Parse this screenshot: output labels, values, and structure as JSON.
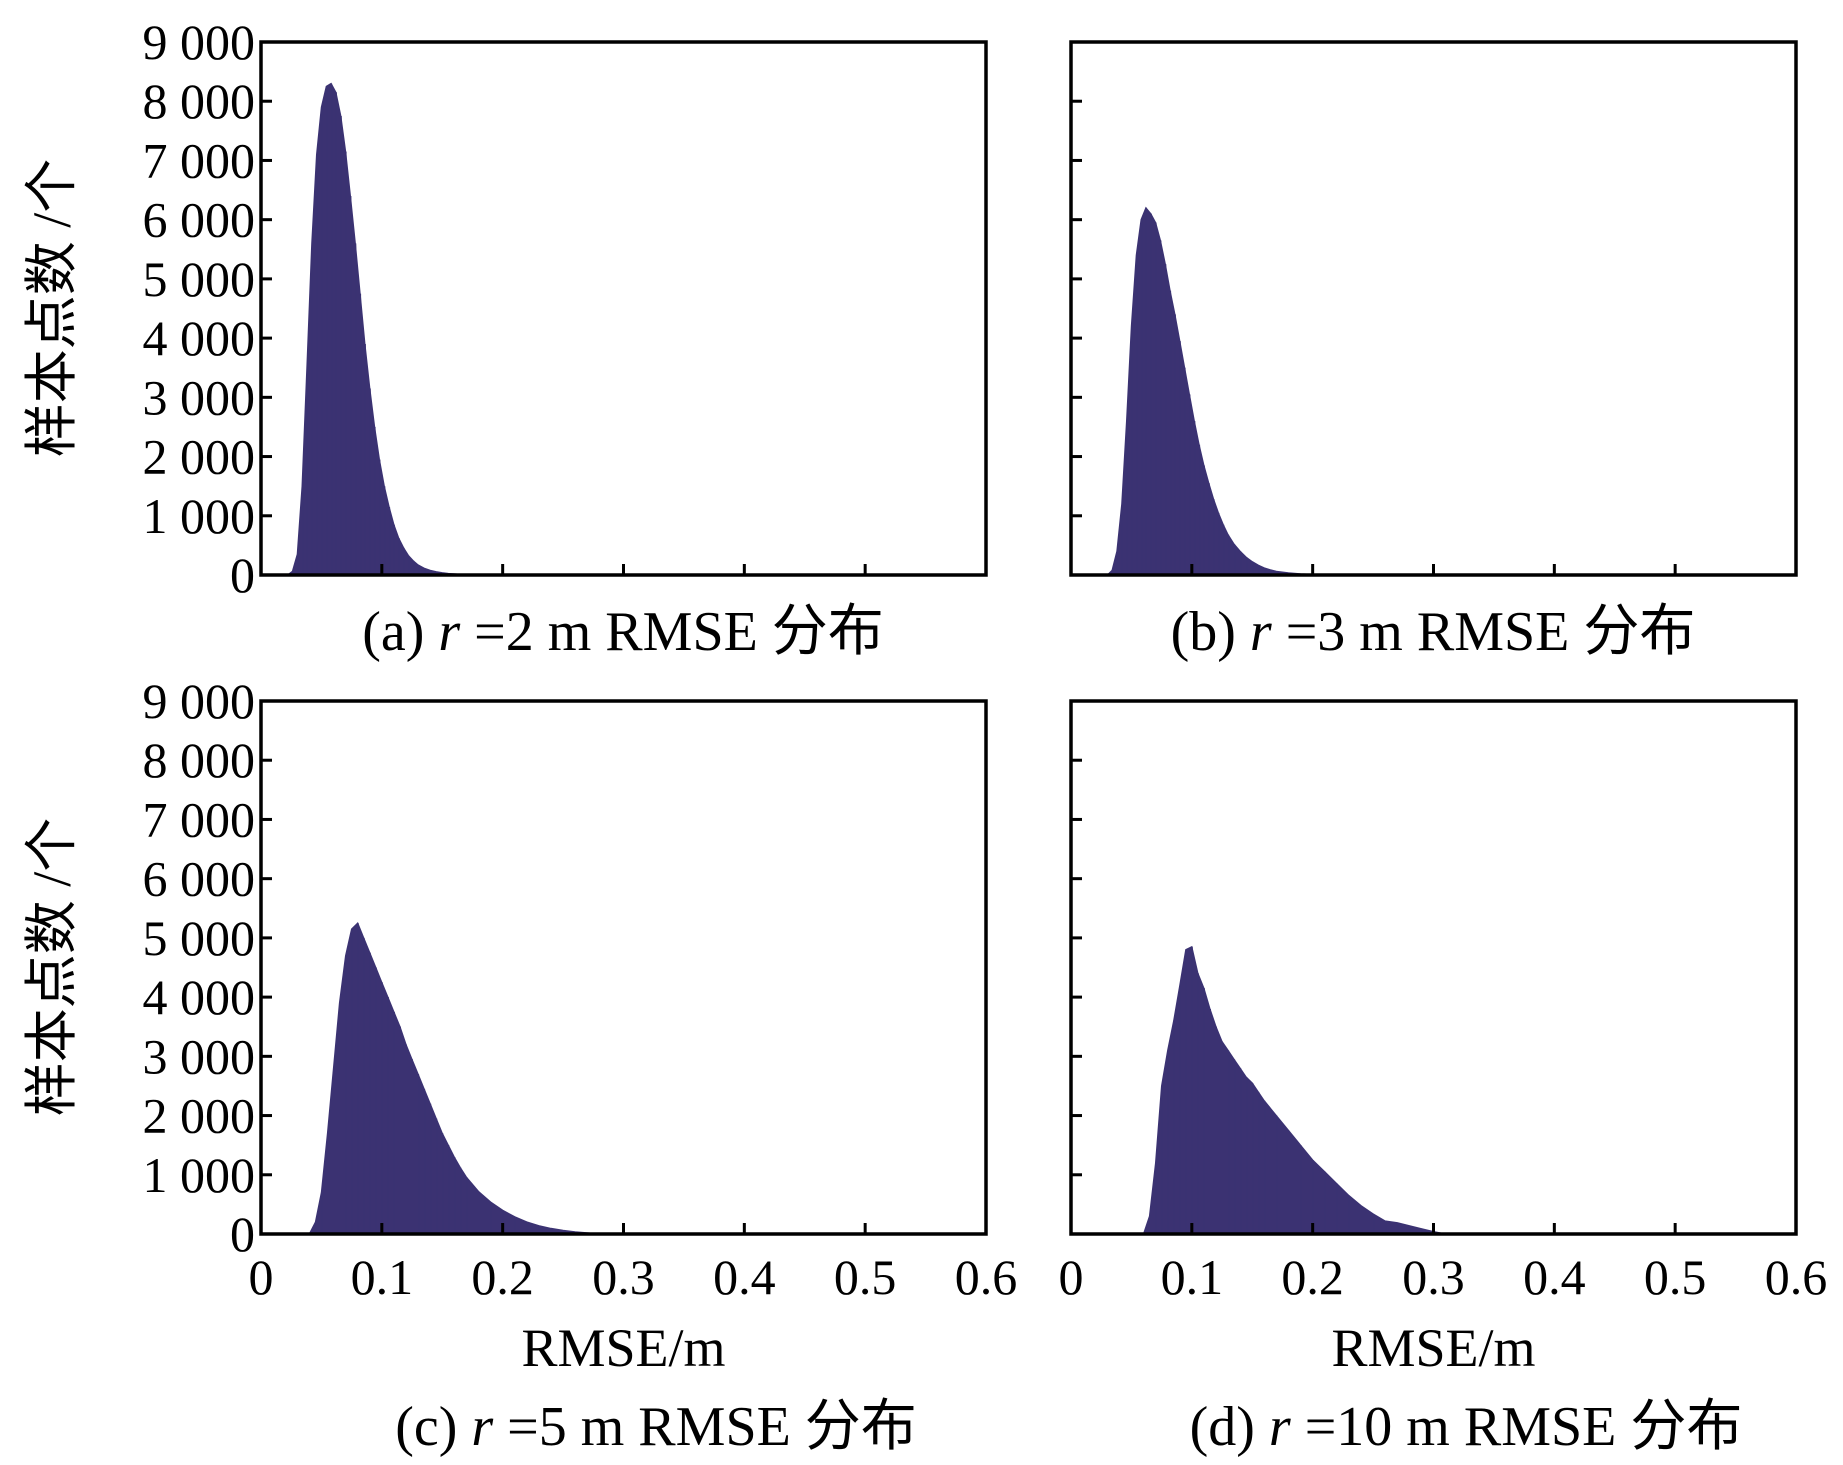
{
  "chart_data": [
    {
      "type": "bar",
      "panel": "a",
      "caption": {
        "prefix": "(a) ",
        "var": "r",
        "suffix": " =2 m RMSE 分布"
      },
      "ylabel": "样本点数 /个",
      "xlabel": "",
      "xlim": [
        0,
        0.6
      ],
      "ylim": [
        0,
        9000
      ],
      "yticks": [
        "0",
        "1 000",
        "2 000",
        "3 000",
        "4 000",
        "5 000",
        "6 000",
        "7 000",
        "8 000",
        "9 000"
      ],
      "xticks": [],
      "color": "#3b3272",
      "grid": false,
      "x": [
        0.022,
        0.026,
        0.03,
        0.034,
        0.038,
        0.042,
        0.046,
        0.05,
        0.054,
        0.058,
        0.062,
        0.066,
        0.07,
        0.074,
        0.078,
        0.082,
        0.086,
        0.09,
        0.094,
        0.098,
        0.102,
        0.106,
        0.11,
        0.114,
        0.118,
        0.122,
        0.126,
        0.13,
        0.135,
        0.14,
        0.145,
        0.15,
        0.155,
        0.16,
        0.165,
        0.17,
        0.175,
        0.18,
        0.19,
        0.2
      ],
      "values": [
        0,
        60,
        350,
        1500,
        3500,
        5600,
        7100,
        7900,
        8250,
        8300,
        8150,
        7750,
        7150,
        6400,
        5600,
        4750,
        3900,
        3150,
        2500,
        1950,
        1500,
        1150,
        850,
        620,
        460,
        330,
        240,
        170,
        115,
        80,
        55,
        38,
        26,
        18,
        12,
        8,
        6,
        4,
        2,
        0
      ]
    },
    {
      "type": "bar",
      "panel": "b",
      "caption": {
        "prefix": "(b) ",
        "var": "r",
        "suffix": " =3 m RMSE 分布"
      },
      "ylabel": "",
      "xlabel": "",
      "xlim": [
        0,
        0.6
      ],
      "ylim": [
        0,
        9000
      ],
      "yticks": [],
      "xticks": [],
      "color": "#3b3272",
      "grid": false,
      "x": [
        0.03,
        0.034,
        0.038,
        0.042,
        0.046,
        0.05,
        0.054,
        0.058,
        0.062,
        0.066,
        0.07,
        0.074,
        0.078,
        0.082,
        0.086,
        0.09,
        0.094,
        0.098,
        0.102,
        0.106,
        0.11,
        0.114,
        0.118,
        0.122,
        0.126,
        0.13,
        0.135,
        0.14,
        0.145,
        0.15,
        0.155,
        0.16,
        0.165,
        0.17,
        0.18,
        0.19,
        0.2,
        0.21,
        0.22
      ],
      "values": [
        0,
        80,
        400,
        1200,
        2600,
        4200,
        5400,
        6000,
        6200,
        6100,
        5950,
        5650,
        5250,
        4800,
        4400,
        3950,
        3500,
        3050,
        2600,
        2200,
        1850,
        1550,
        1280,
        1050,
        850,
        680,
        520,
        400,
        300,
        225,
        165,
        120,
        88,
        62,
        35,
        20,
        11,
        5,
        0
      ]
    },
    {
      "type": "bar",
      "panel": "c",
      "caption": {
        "prefix": "(c) ",
        "var": "r",
        "suffix": " =5 m RMSE 分布"
      },
      "ylabel": "样本点数 /个",
      "xlabel": "RMSE/m",
      "xlim": [
        0,
        0.6
      ],
      "ylim": [
        0,
        9000
      ],
      "yticks": [
        "0",
        "1 000",
        "2 000",
        "3 000",
        "4 000",
        "5 000",
        "6 000",
        "7 000",
        "8 000",
        "9 000"
      ],
      "xticks": [
        "0",
        "0.1",
        "0.2",
        "0.3",
        "0.4",
        "0.5",
        "0.6"
      ],
      "color": "#3b3272",
      "grid": false,
      "x": [
        0.04,
        0.045,
        0.05,
        0.055,
        0.06,
        0.065,
        0.07,
        0.075,
        0.08,
        0.085,
        0.09,
        0.095,
        0.1,
        0.105,
        0.11,
        0.115,
        0.12,
        0.125,
        0.13,
        0.135,
        0.14,
        0.145,
        0.15,
        0.155,
        0.16,
        0.165,
        0.17,
        0.18,
        0.19,
        0.2,
        0.21,
        0.22,
        0.23,
        0.24,
        0.25,
        0.26,
        0.27,
        0.28
      ],
      "values": [
        0,
        200,
        700,
        1700,
        2800,
        3900,
        4700,
        5150,
        5250,
        5000,
        4750,
        4500,
        4250,
        4000,
        3750,
        3500,
        3200,
        2950,
        2700,
        2450,
        2200,
        1950,
        1700,
        1500,
        1300,
        1120,
        960,
        720,
        540,
        400,
        290,
        205,
        140,
        95,
        60,
        35,
        18,
        0
      ]
    },
    {
      "type": "bar",
      "panel": "d",
      "caption": {
        "prefix": "(d) ",
        "var": "r",
        "suffix": " =10 m RMSE 分布"
      },
      "ylabel": "",
      "xlabel": "RMSE/m",
      "xlim": [
        0,
        0.6
      ],
      "ylim": [
        0,
        9000
      ],
      "yticks": [],
      "xticks": [
        "0",
        "0.1",
        "0.2",
        "0.3",
        "0.4",
        "0.5",
        "0.6"
      ],
      "color": "#3b3272",
      "grid": false,
      "x": [
        0.06,
        0.065,
        0.07,
        0.075,
        0.08,
        0.085,
        0.09,
        0.095,
        0.1,
        0.105,
        0.11,
        0.115,
        0.12,
        0.125,
        0.13,
        0.135,
        0.14,
        0.145,
        0.15,
        0.155,
        0.16,
        0.17,
        0.18,
        0.19,
        0.2,
        0.21,
        0.22,
        0.23,
        0.24,
        0.25,
        0.26,
        0.27,
        0.28,
        0.29,
        0.3,
        0.31
      ],
      "values": [
        0,
        300,
        1200,
        2500,
        3100,
        3600,
        4200,
        4800,
        4850,
        4400,
        4150,
        3800,
        3500,
        3250,
        3100,
        2950,
        2800,
        2650,
        2550,
        2400,
        2250,
        2000,
        1750,
        1500,
        1250,
        1050,
        850,
        650,
        480,
        340,
        220,
        190,
        140,
        90,
        40,
        0
      ]
    }
  ]
}
